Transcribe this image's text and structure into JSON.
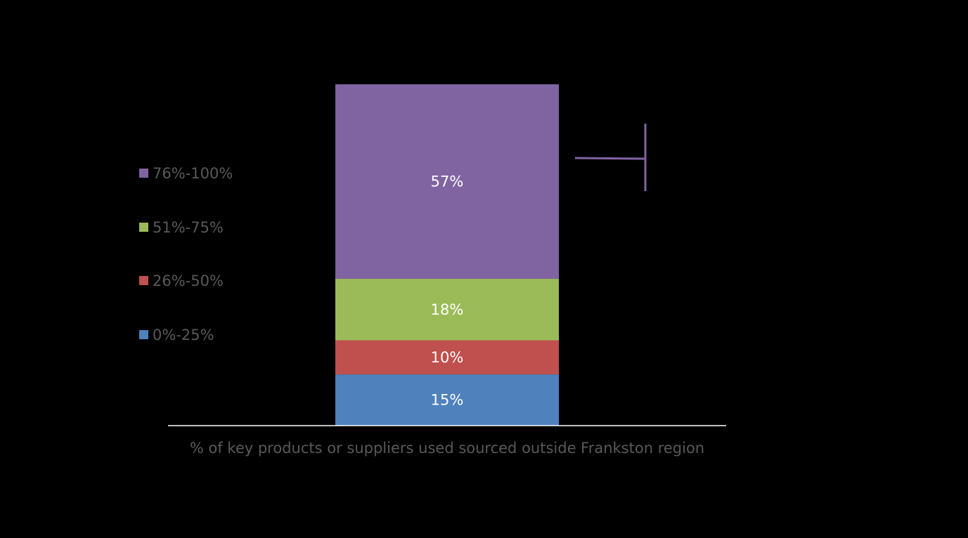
{
  "chart_data": {
    "type": "bar",
    "stacked": true,
    "categories": [
      "% of key products or suppliers used sourced outside Frankston region"
    ],
    "series": [
      {
        "name": "0%-25%",
        "values": [
          15
        ],
        "color": "#4F81BD",
        "label": "15%"
      },
      {
        "name": "26%-50%",
        "values": [
          10
        ],
        "color": "#C0504D",
        "label": "10%"
      },
      {
        "name": "51%-75%",
        "values": [
          18
        ],
        "color": "#9BBB59",
        "label": "18%"
      },
      {
        "name": "76%-100%",
        "values": [
          57
        ],
        "color": "#8064A2",
        "label": "57%"
      }
    ],
    "ylim": [
      0,
      100
    ],
    "grid": false,
    "legend_position": "left",
    "xlabel": "% of key products or suppliers used sourced outside Frankston region",
    "annotation": {
      "type": "bracket",
      "series": "76%-100%",
      "color": "#8064A2"
    },
    "colors": {
      "background": "#000000",
      "axis": "#FFFFFF",
      "legend_text": "#595959",
      "label_text": "#FFFFFF"
    }
  }
}
